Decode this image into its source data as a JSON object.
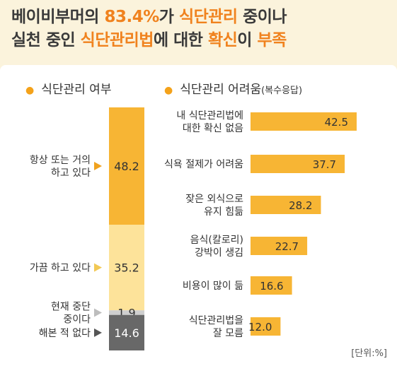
{
  "headline": {
    "line1": [
      {
        "text": "베이비부머의 ",
        "hl": false
      },
      {
        "text": "83.4%",
        "hl": true
      },
      {
        "text": "가 ",
        "hl": false
      },
      {
        "text": "식단관리",
        "hl": true
      },
      {
        "text": " 중이나",
        "hl": false
      }
    ],
    "line2": [
      {
        "text": "실천 중인 ",
        "hl": false
      },
      {
        "text": "식단관리법",
        "hl": true
      },
      {
        "text": "에 대한 ",
        "hl": false
      },
      {
        "text": "확신",
        "hl": true
      },
      {
        "text": "이 ",
        "hl": false
      },
      {
        "text": "부족",
        "hl": true
      }
    ]
  },
  "unit_label": "[단위:%]",
  "colors": {
    "accent": "#f0821e",
    "bar": "#f7b534",
    "light": "#fde39a",
    "gray_light": "#cfcfcf",
    "gray_dark": "#686868"
  },
  "chart_data": [
    {
      "type": "bar",
      "stacked": true,
      "title": "식단관리 여부",
      "series": [
        {
          "name_lines": [
            "항상 또는 거의",
            "하고 있다"
          ],
          "value": 48.2,
          "label": "48.2",
          "color": "#f7b534"
        },
        {
          "name_lines": [
            "가끔 하고 있다"
          ],
          "value": 35.2,
          "label": "35.2",
          "color": "#fde39a"
        },
        {
          "name_lines": [
            "현재 중단",
            "중이다"
          ],
          "value": 1.9,
          "label": "1.9",
          "color": "#cfcfcf"
        },
        {
          "name_lines": [
            "해본 적 없다"
          ],
          "value": 14.6,
          "label": "14.6",
          "color": "#686868"
        }
      ]
    },
    {
      "type": "bar",
      "orientation": "horizontal",
      "title": "식단관리 어려움",
      "title_note": "(복수응답)",
      "categories": [
        [
          "내 식단관리법에",
          "대한 확신 없음"
        ],
        [
          "식욕 절제가 어려움"
        ],
        [
          "잦은 외식으로",
          "유지 힘듦"
        ],
        [
          "음식(칼로리)",
          "강박이 생김"
        ],
        [
          "비용이 많이 듦"
        ],
        [
          "식단관리법을",
          "잘 모름"
        ]
      ],
      "values": [
        42.5,
        37.7,
        28.2,
        22.7,
        16.6,
        12.0
      ],
      "value_labels": [
        "42.5",
        "37.7",
        "28.2",
        "22.7",
        "16.6",
        "12.0"
      ],
      "xlim": [
        0,
        50
      ]
    }
  ]
}
